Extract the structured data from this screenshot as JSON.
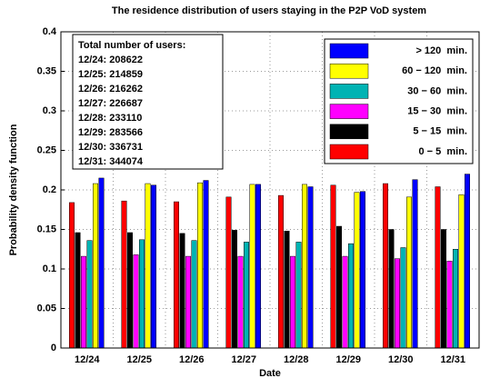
{
  "chart_data": {
    "type": "bar",
    "title": "The residence distribution of users staying in the P2P VoD system",
    "x_label": "Date",
    "y_label": "Probability density function",
    "categories": [
      "12/24",
      "12/25",
      "12/26",
      "12/27",
      "12/28",
      "12/29",
      "12/30",
      "12/31"
    ],
    "series": [
      {
        "name": "0 − 5  min.",
        "color": "#ff0000",
        "values": [
          0.184,
          0.186,
          0.185,
          0.191,
          0.193,
          0.206,
          0.208,
          0.204
        ]
      },
      {
        "name": "5 − 15  min.",
        "color": "#000000",
        "values": [
          0.146,
          0.146,
          0.145,
          0.149,
          0.148,
          0.154,
          0.15,
          0.15
        ]
      },
      {
        "name": "15 − 30  min.",
        "color": "#ff00ff",
        "values": [
          0.116,
          0.118,
          0.116,
          0.116,
          0.116,
          0.116,
          0.113,
          0.11
        ]
      },
      {
        "name": "30 − 60  min.",
        "color": "#00b3b3",
        "values": [
          0.136,
          0.137,
          0.136,
          0.134,
          0.134,
          0.132,
          0.127,
          0.125
        ]
      },
      {
        "name": "60 − 120  min.",
        "color": "#ffff00",
        "values": [
          0.208,
          0.208,
          0.209,
          0.207,
          0.207,
          0.197,
          0.191,
          0.194
        ]
      },
      {
        "name": "> 120  min.",
        "color": "#0000ff",
        "values": [
          0.215,
          0.206,
          0.212,
          0.207,
          0.204,
          0.198,
          0.213,
          0.22
        ]
      }
    ],
    "annotations": [
      "Total number of users:",
      "12/24: 208622",
      "12/25: 214859",
      "12/26: 216262",
      "12/27: 226687",
      "12/28: 233110",
      "12/29: 283566",
      "12/30: 336731",
      "12/31: 344074"
    ],
    "ylim": [
      0,
      0.4
    ],
    "yticks": [
      0,
      0.05,
      0.1,
      0.15,
      0.2,
      0.25,
      0.3,
      0.35,
      0.4
    ],
    "grid": true,
    "legend": "upper right"
  }
}
